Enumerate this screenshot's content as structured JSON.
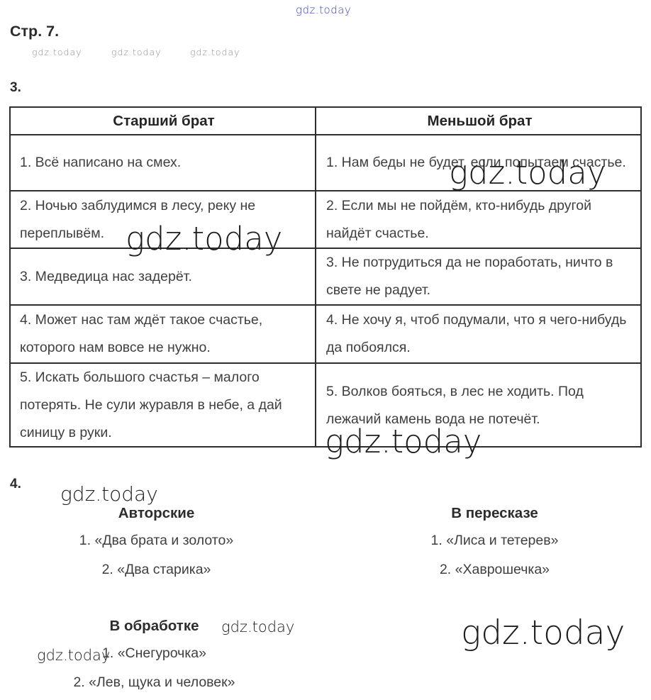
{
  "brand": "gdz.today",
  "page": {
    "title": "Стр. 7."
  },
  "section3": {
    "number": "3.",
    "table": {
      "headers": [
        "Старший брат",
        "Меньшой брат"
      ],
      "rows": [
        [
          "1. Всё написано на смех.",
          "1. Нам беды не будет, если попытаем счастье."
        ],
        [
          "2. Ночью заблудимся в лесу, реку не переплывём.",
          "2. Если мы не пойдём, кто-нибудь другой найдёт счастье."
        ],
        [
          "3. Медведица нас задерёт.",
          "3. Не потрудиться да не поработать, ничто в свете не радует."
        ],
        [
          "4. Может нас там ждёт такое счастье, которого нам вовсе не нужно.",
          "4. Не хочу я, чтоб подумали, что я чего-нибудь да побоялся."
        ],
        [
          "5. Искать большого счастья – малого потерять. Не сули журавля в небе, а дай синицу в руки.",
          "5. Волков бояться, в лес не ходить. Под лежачий камень вода не потечёт."
        ]
      ]
    }
  },
  "section4": {
    "number": "4.",
    "groups": [
      {
        "title": "Авторские",
        "items": [
          "1. «Два брата и золото»",
          "2. «Два старика»"
        ]
      },
      {
        "title": "В пересказе",
        "items": [
          "1. «Лиса и тетерев»",
          "2. «Хаврошечка»"
        ]
      },
      {
        "title": "В обработке",
        "items": [
          "1. «Снегурочка»",
          "2. «Лев, щука и человек»"
        ]
      }
    ]
  },
  "colors": {
    "text": "#3f3f3f",
    "bold_text": "#2b2b2b",
    "border": "#2e2e2e",
    "watermark_dark": "#1d1d1d",
    "watermark_gray": "#8f8f8f",
    "link_blue": "#3c3ccf"
  }
}
